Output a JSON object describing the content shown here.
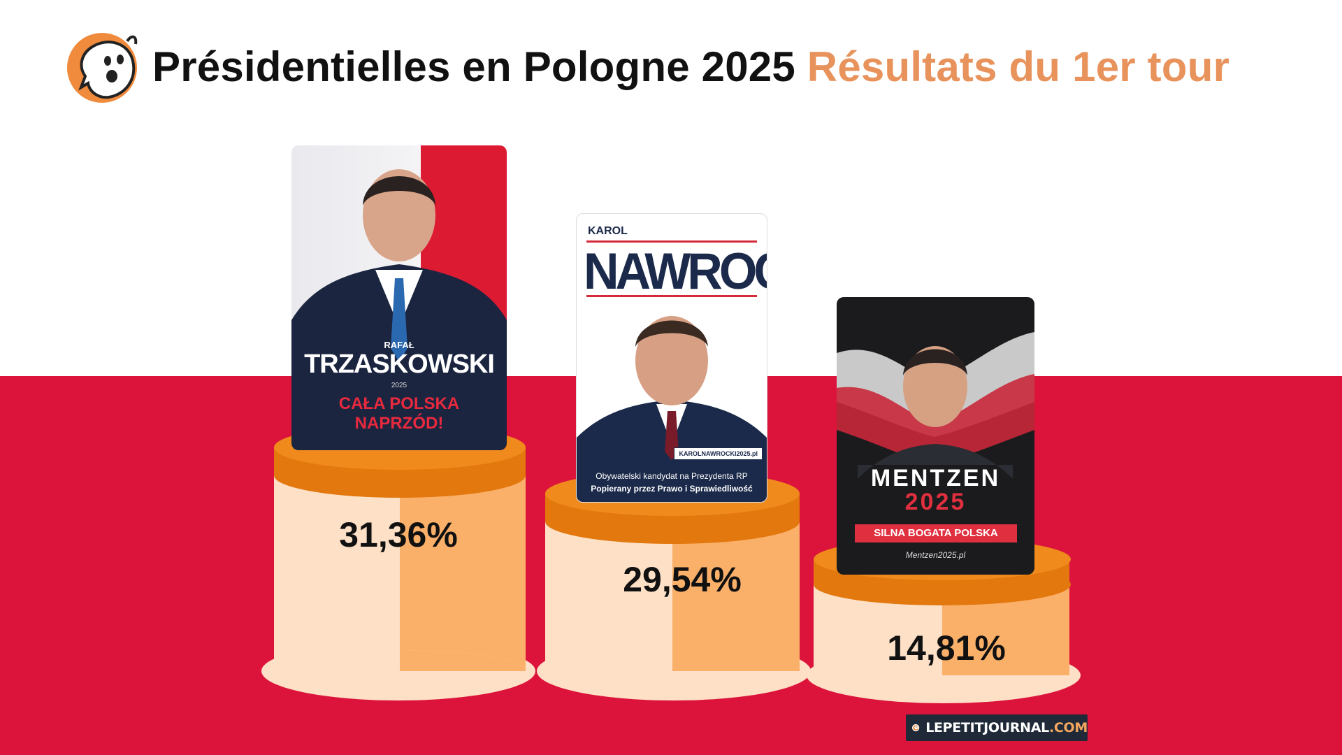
{
  "header": {
    "title_main": "Présidentielles en Pologne 2025",
    "title_sub": "Résultats du 1er tour",
    "colors": {
      "main": "#111111",
      "sub": "#e8925c"
    }
  },
  "candidates": [
    {
      "result": "31,36%",
      "poster": {
        "first_name": "RAFAŁ",
        "last_name": "TRZASKOWSKI",
        "year": "2025",
        "slogan_line1": "CAŁA POLSKA",
        "slogan_line2": "NAPRZÓD!"
      }
    },
    {
      "result": "29,54%",
      "poster": {
        "first_name": "KAROL",
        "last_name": "NAWROCKI",
        "website": "KAROLNAWROCKI2025.pl",
        "tagline1": "Obywatelski kandydat na Prezydenta RP",
        "tagline2": "Popierany przez Prawo i Sprawiedliwość"
      }
    },
    {
      "result": "14,81%",
      "poster": {
        "last_name": "MENTZEN",
        "year": "2025",
        "slogan": "SILNA BOGATA POLSKA",
        "website": "Mentzen2025.pl"
      }
    }
  ],
  "brand": {
    "left": "LEPETITJOURNAL",
    "right": ".COM"
  },
  "colors": {
    "flag_red": "#dc143c",
    "podium_top": "#f08a1c",
    "podium_light": "#fde0c5",
    "podium_dark": "#fbb06a"
  }
}
